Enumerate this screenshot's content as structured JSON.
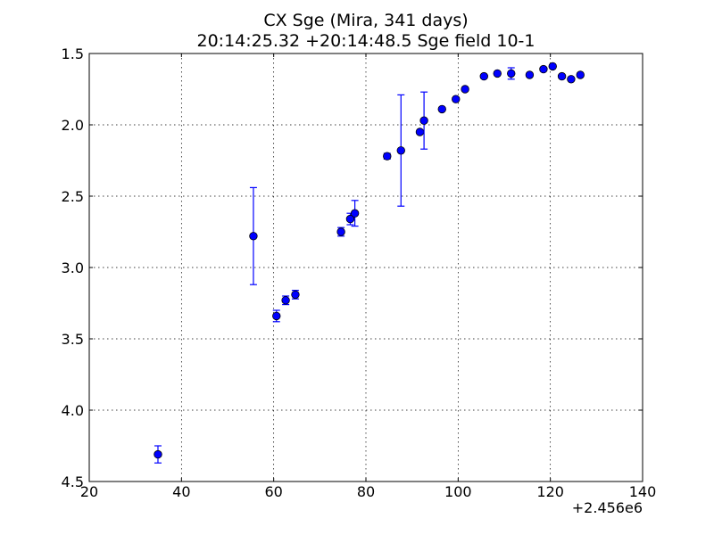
{
  "chart_data": {
    "type": "scatter",
    "title": "CX Sge (Mira, 341 days)",
    "subtitle": "20:14:25.32 +20:14:48.5 Sge field 10-1",
    "xlabel": "",
    "ylabel": "",
    "x_offset_label": "+2.456e6",
    "xlim": [
      20,
      140
    ],
    "ylim": [
      4.5,
      1.5
    ],
    "y_inverted": true,
    "x_ticks": [
      20,
      40,
      60,
      80,
      100,
      120,
      140
    ],
    "x_tick_labels": [
      "20",
      "40",
      "60",
      "80",
      "100",
      "120",
      "140"
    ],
    "y_ticks": [
      1.5,
      2.0,
      2.5,
      3.0,
      3.5,
      4.0,
      4.5
    ],
    "y_tick_labels": [
      "1.5",
      "2.0",
      "2.5",
      "3.0",
      "3.5",
      "4.0",
      "4.5"
    ],
    "grid": true,
    "marker_color": "#0000ff",
    "series": [
      {
        "points": [
          {
            "x": 34.9,
            "y": 4.31,
            "err": 0.06
          },
          {
            "x": 55.6,
            "y": 2.78,
            "err": 0.34
          },
          {
            "x": 60.6,
            "y": 3.34,
            "err": 0.04
          },
          {
            "x": 62.6,
            "y": 3.23,
            "err": 0.03
          },
          {
            "x": 64.7,
            "y": 3.19,
            "err": 0.03
          },
          {
            "x": 74.6,
            "y": 2.75,
            "err": 0.03
          },
          {
            "x": 76.6,
            "y": 2.66,
            "err": 0.04
          },
          {
            "x": 77.6,
            "y": 2.62,
            "err": 0.09
          },
          {
            "x": 84.6,
            "y": 2.22,
            "err": 0.02
          },
          {
            "x": 87.6,
            "y": 2.18,
            "err": 0.39
          },
          {
            "x": 91.7,
            "y": 2.05,
            "err": 0.01
          },
          {
            "x": 92.6,
            "y": 1.97,
            "err": 0.2
          },
          {
            "x": 96.5,
            "y": 1.89,
            "err": 0.01
          },
          {
            "x": 99.5,
            "y": 1.82,
            "err": 0.01
          },
          {
            "x": 101.5,
            "y": 1.75,
            "err": 0.01
          },
          {
            "x": 105.6,
            "y": 1.66,
            "err": 0.01
          },
          {
            "x": 108.5,
            "y": 1.64,
            "err": 0.01
          },
          {
            "x": 111.5,
            "y": 1.64,
            "err": 0.04
          },
          {
            "x": 115.5,
            "y": 1.65,
            "err": 0.01
          },
          {
            "x": 118.5,
            "y": 1.61,
            "err": 0.01
          },
          {
            "x": 120.5,
            "y": 1.59,
            "err": 0.01
          },
          {
            "x": 122.5,
            "y": 1.66,
            "err": 0.01
          },
          {
            "x": 124.5,
            "y": 1.68,
            "err": 0.01
          },
          {
            "x": 126.5,
            "y": 1.65,
            "err": 0.01
          }
        ]
      }
    ]
  }
}
